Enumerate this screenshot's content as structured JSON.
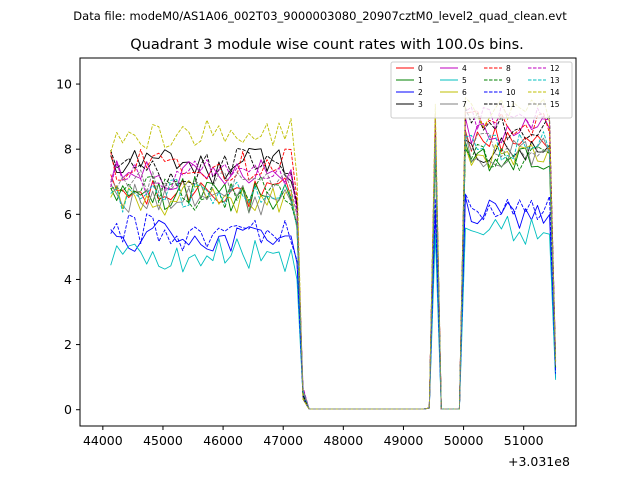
{
  "chart_data": {
    "type": "line",
    "file_label": "Data file: modeM0/AS1A06_002T03_9000003080_20907cztM0_level2_quad_clean.evt",
    "title": "Quadrant 3 module wise count rates with 100.0s bins.",
    "xlabel": "",
    "ylabel": "",
    "x_offset_text": "+3.031e8",
    "xlim": [
      43620,
      51870
    ],
    "ylim": [
      -0.5,
      10.8
    ],
    "x_ticks": [
      44000,
      45000,
      46000,
      47000,
      48000,
      49000,
      50000,
      51000
    ],
    "x_tick_labels": [
      "44000",
      "45000",
      "46000",
      "47000",
      "48000",
      "49000",
      "50000",
      "51000"
    ],
    "y_ticks": [
      0,
      2,
      4,
      6,
      8,
      10
    ],
    "y_tick_labels": [
      "0",
      "2",
      "4",
      "6",
      "8",
      "10"
    ],
    "legend_position": "upper right",
    "segments": [
      {
        "start": 44130,
        "end": 47130
      },
      {
        "start": 47230,
        "end": 47330
      },
      {
        "start": 47430,
        "end": 49330
      },
      {
        "start": 49430,
        "end": 49630
      },
      {
        "start": 49730,
        "end": 49930
      },
      {
        "start": 50030,
        "end": 51530
      }
    ],
    "peak_times": [
      49530,
      50030
    ],
    "drop_times": [
      47330,
      51530
    ],
    "step": 100,
    "series": [
      {
        "name": "0",
        "color": "#ff0000",
        "dash": "solid",
        "level": 6.7,
        "late": 8.3
      },
      {
        "name": "1",
        "color": "#008000",
        "dash": "solid",
        "level": 6.6,
        "late": 7.6
      },
      {
        "name": "2",
        "color": "#0000ff",
        "dash": "solid",
        "level": 5.3,
        "late": 6.0
      },
      {
        "name": "3",
        "color": "#000000",
        "dash": "solid",
        "level": 7.5,
        "late": 7.9
      },
      {
        "name": "4",
        "color": "#bf00bf",
        "dash": "solid",
        "level": 7.3,
        "late": 8.6
      },
      {
        "name": "5",
        "color": "#00bfbf",
        "dash": "solid",
        "level": 4.7,
        "late": 5.5
      },
      {
        "name": "6",
        "color": "#bfbf00",
        "dash": "solid",
        "level": 6.5,
        "late": 7.8
      },
      {
        "name": "7",
        "color": "#808080",
        "dash": "solid",
        "level": 6.6,
        "late": 7.9
      },
      {
        "name": "8",
        "color": "#ff0000",
        "dash": "dashed",
        "level": 7.6,
        "late": 8.8
      },
      {
        "name": "9",
        "color": "#008000",
        "dash": "dashed",
        "level": 6.7,
        "late": 7.7
      },
      {
        "name": "10",
        "color": "#0000ff",
        "dash": "dashed",
        "level": 5.4,
        "late": 6.2
      },
      {
        "name": "11",
        "color": "#000000",
        "dash": "dashed",
        "level": 7.4,
        "late": 8.7
      },
      {
        "name": "12",
        "color": "#bf00bf",
        "dash": "dashed",
        "level": 7.1,
        "late": 8.9
      },
      {
        "name": "13",
        "color": "#00bfbf",
        "dash": "dashed",
        "level": 6.6,
        "late": 8.1
      },
      {
        "name": "14",
        "color": "#bfbf00",
        "dash": "dashed",
        "level": 8.4,
        "late": 9.1
      },
      {
        "name": "15",
        "color": "#808080",
        "dash": "dashed",
        "level": 7.0,
        "late": 8.1
      }
    ]
  }
}
